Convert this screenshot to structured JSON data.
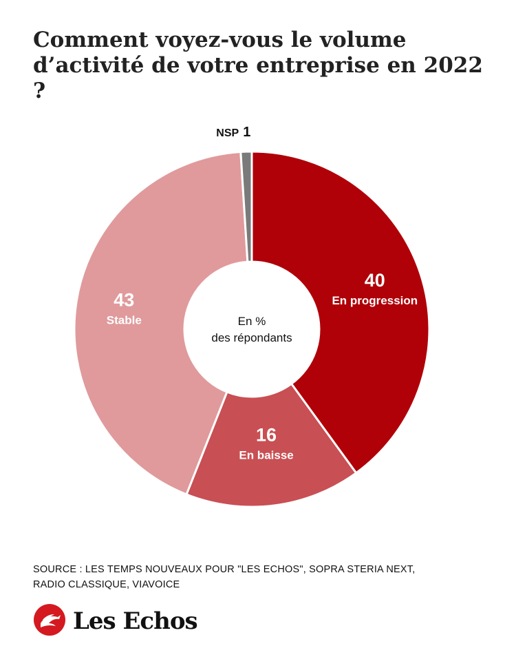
{
  "title": {
    "line1": "Comment voyez-vous le volume",
    "line2": "d’activité de votre entreprise en 2022 ?"
  },
  "center_label": {
    "line1": "En %",
    "line2": "des répondants"
  },
  "source": {
    "line1": "SOURCE : LES TEMPS NOUVEAUX POUR \"LES ECHOS\", SOPRA STERIA NEXT,",
    "line2": "RADIO CLASSIQUE, VIAVOICE"
  },
  "brand": {
    "name": "Les Echos",
    "logo_icon": "rooster-icon"
  },
  "colors": {
    "progression": "#b00008",
    "baisse": "#c84f53",
    "stable": "#e09a9c",
    "nsp": "#7a7a7a",
    "brand_red": "#d41920"
  },
  "chart_data": {
    "type": "pie",
    "variant": "donut",
    "categories": [
      "En progression",
      "En baisse",
      "Stable",
      "NSP"
    ],
    "values": [
      40,
      16,
      43,
      1
    ],
    "unit": "%"
  }
}
